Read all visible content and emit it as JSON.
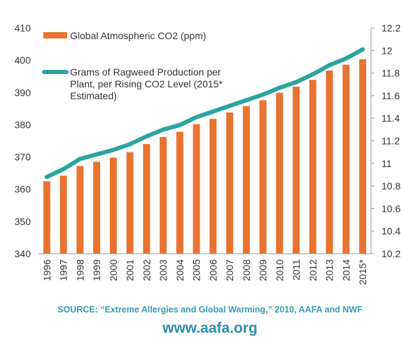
{
  "chart_data": {
    "type": "bar",
    "categories": [
      "1996",
      "1997",
      "1998",
      "1999",
      "2000",
      "2001",
      "2002",
      "2003",
      "2004",
      "2005",
      "2006",
      "2007",
      "2008",
      "2009",
      "2010",
      "2011",
      "2012",
      "2013",
      "2014",
      "2015*"
    ],
    "series": [
      {
        "name": "Global Atmospheric CO2 (ppm)",
        "type": "bar",
        "axis": "left",
        "color": "#e8732e",
        "values": [
          362.5,
          364.2,
          367.2,
          368.5,
          369.8,
          371.5,
          374.0,
          376.2,
          377.8,
          380.2,
          381.8,
          383.8,
          385.8,
          387.6,
          389.9,
          391.8,
          393.9,
          396.8,
          398.6,
          400.3
        ]
      },
      {
        "name": "Grams of Ragweed  Production per Plant, per Rising CO2 Level (2015* Estimated)",
        "type": "line",
        "axis": "right",
        "color": "#2aa5a0",
        "values": [
          10.88,
          10.95,
          11.04,
          11.08,
          11.12,
          11.17,
          11.24,
          11.3,
          11.34,
          11.41,
          11.46,
          11.51,
          11.56,
          11.61,
          11.67,
          11.72,
          11.79,
          11.87,
          11.93,
          12.01
        ]
      }
    ],
    "y_left": {
      "min": 340,
      "max": 410,
      "ticks": [
        "340",
        "350",
        "360",
        "370",
        "380",
        "390",
        "400",
        "410"
      ]
    },
    "y_right": {
      "min": 10.2,
      "max": 12.2,
      "ticks": [
        "10.2",
        "10.4",
        "10.6",
        "10.8",
        "11",
        "11.2",
        "11.4",
        "11.6",
        "11.8",
        "12",
        "12.2"
      ]
    },
    "legend": {
      "placement": "top-left",
      "bar_label": "Global Atmospheric CO2 (ppm)",
      "line_label_lines": [
        "Grams of Ragweed  Production per",
        "Plant, per Rising CO2 Level (2015*",
        "Estimated)"
      ]
    },
    "grid": false
  },
  "footer": {
    "source": "SOURCE: “Extreme Allergies and Global Warming,” 2010, AAFA and NWF",
    "url": "www.aafa.org"
  }
}
